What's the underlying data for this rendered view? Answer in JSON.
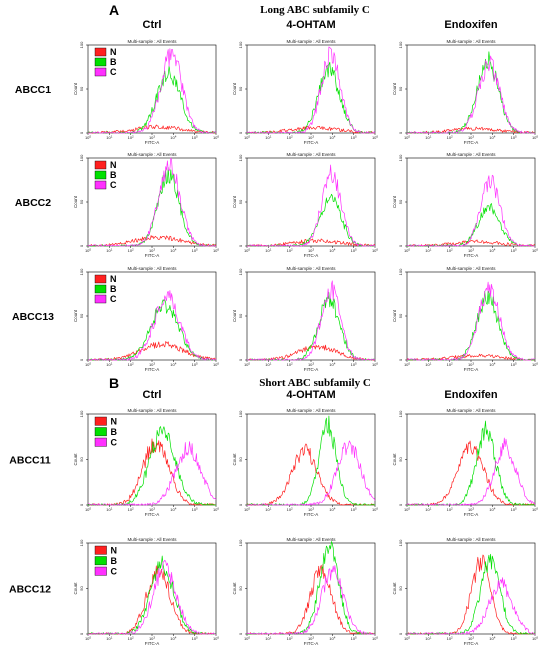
{
  "colors": {
    "N": "#ff2020",
    "B": "#00e000",
    "C": "#ff30ff"
  },
  "chart_data": [
    {
      "panel": "A",
      "title": "Long ABC subfamily C",
      "type": "line",
      "columns": [
        "Ctrl",
        "4-OHTAM",
        "Endoxifen"
      ],
      "rows": [
        "ABCC1",
        "ABCC2",
        "ABCC13"
      ],
      "plot_subtitle": "Multi-sample : All Events",
      "xlabel": "FITC-A",
      "ylabel": "Count",
      "x_scale": "log",
      "xlim": [
        1,
        1000000
      ],
      "ylim": [
        0,
        100
      ],
      "legend": {
        "placement": "top-left",
        "entries": [
          "N",
          "B",
          "C"
        ]
      },
      "histograms": [
        {
          "row": "ABCC1",
          "column": "Ctrl",
          "series": [
            {
              "name": "N",
              "peak_x": 2000,
              "peak_count": 7,
              "width": 1.1
            },
            {
              "name": "B",
              "peak_x": 6000,
              "peak_count": 68,
              "width": 0.55
            },
            {
              "name": "C",
              "peak_x": 8000,
              "peak_count": 90,
              "width": 0.5
            }
          ]
        },
        {
          "row": "ABCC1",
          "column": "4-OHTAM",
          "series": [
            {
              "name": "N",
              "peak_x": 1500,
              "peak_count": 6,
              "width": 1.1
            },
            {
              "name": "B",
              "peak_x": 7000,
              "peak_count": 72,
              "width": 0.5
            },
            {
              "name": "C",
              "peak_x": 8500,
              "peak_count": 88,
              "width": 0.45
            }
          ]
        },
        {
          "row": "ABCC1",
          "column": "Endoxifen",
          "series": [
            {
              "name": "N",
              "peak_x": 1500,
              "peak_count": 5,
              "width": 1.1
            },
            {
              "name": "B",
              "peak_x": 6000,
              "peak_count": 82,
              "width": 0.5
            },
            {
              "name": "C",
              "peak_x": 7000,
              "peak_count": 78,
              "width": 0.5
            }
          ]
        },
        {
          "row": "ABCC2",
          "column": "Ctrl",
          "series": [
            {
              "name": "N",
              "peak_x": 2000,
              "peak_count": 10,
              "width": 1.1
            },
            {
              "name": "B",
              "peak_x": 6000,
              "peak_count": 80,
              "width": 0.5
            },
            {
              "name": "C",
              "peak_x": 6500,
              "peak_count": 92,
              "width": 0.5
            }
          ]
        },
        {
          "row": "ABCC2",
          "column": "4-OHTAM",
          "series": [
            {
              "name": "N",
              "peak_x": 2000,
              "peak_count": 6,
              "width": 1.1
            },
            {
              "name": "B",
              "peak_x": 8000,
              "peak_count": 55,
              "width": 0.5
            },
            {
              "name": "C",
              "peak_x": 9000,
              "peak_count": 82,
              "width": 0.45
            }
          ]
        },
        {
          "row": "ABCC2",
          "column": "Endoxifen",
          "series": [
            {
              "name": "N",
              "peak_x": 2000,
              "peak_count": 5,
              "width": 1.1
            },
            {
              "name": "B",
              "peak_x": 7000,
              "peak_count": 45,
              "width": 0.5
            },
            {
              "name": "C",
              "peak_x": 8000,
              "peak_count": 75,
              "width": 0.45
            }
          ]
        },
        {
          "row": "ABCC13",
          "column": "Ctrl",
          "series": [
            {
              "name": "N",
              "peak_x": 3000,
              "peak_count": 18,
              "width": 1.0
            },
            {
              "name": "B",
              "peak_x": 4000,
              "peak_count": 62,
              "width": 0.65
            },
            {
              "name": "C",
              "peak_x": 5000,
              "peak_count": 72,
              "width": 0.6
            }
          ]
        },
        {
          "row": "ABCC13",
          "column": "4-OHTAM",
          "series": [
            {
              "name": "N",
              "peak_x": 2000,
              "peak_count": 15,
              "width": 0.9
            },
            {
              "name": "B",
              "peak_x": 7000,
              "peak_count": 68,
              "width": 0.5
            },
            {
              "name": "C",
              "peak_x": 8500,
              "peak_count": 80,
              "width": 0.45
            }
          ]
        },
        {
          "row": "ABCC13",
          "column": "Endoxifen",
          "series": [
            {
              "name": "N",
              "peak_x": 2000,
              "peak_count": 5,
              "width": 1.1
            },
            {
              "name": "B",
              "peak_x": 6000,
              "peak_count": 72,
              "width": 0.5
            },
            {
              "name": "C",
              "peak_x": 7000,
              "peak_count": 80,
              "width": 0.5
            }
          ]
        }
      ]
    },
    {
      "panel": "B",
      "title": "Short ABC subfamily C",
      "type": "line",
      "columns": [
        "Ctrl",
        "4-OHTAM",
        "Endoxifen"
      ],
      "rows": [
        "ABCC11",
        "ABCC12"
      ],
      "plot_subtitle": "Multi-sample : All Events",
      "xlabel": "FITC-A",
      "ylabel": "Count",
      "x_scale": "log",
      "xlim": [
        1,
        1000000
      ],
      "ylim": [
        0,
        100
      ],
      "legend": {
        "placement": "top-left",
        "entries": [
          "N",
          "B",
          "C"
        ]
      },
      "histograms": [
        {
          "row": "ABCC11",
          "column": "Ctrl",
          "series": [
            {
              "name": "N",
              "peak_x": 1500,
              "peak_count": 68,
              "width": 0.6
            },
            {
              "name": "B",
              "peak_x": 3000,
              "peak_count": 80,
              "width": 0.6
            },
            {
              "name": "C",
              "peak_x": 50000,
              "peak_count": 62,
              "width": 0.6
            }
          ]
        },
        {
          "row": "ABCC11",
          "column": "4-OHTAM",
          "series": [
            {
              "name": "N",
              "peak_x": 500,
              "peak_count": 60,
              "width": 0.6
            },
            {
              "name": "B",
              "peak_x": 6000,
              "peak_count": 88,
              "width": 0.4
            },
            {
              "name": "C",
              "peak_x": 60000,
              "peak_count": 65,
              "width": 0.55
            }
          ]
        },
        {
          "row": "ABCC11",
          "column": "Endoxifen",
          "series": [
            {
              "name": "N",
              "peak_x": 1000,
              "peak_count": 65,
              "width": 0.6
            },
            {
              "name": "B",
              "peak_x": 5000,
              "peak_count": 82,
              "width": 0.45
            },
            {
              "name": "C",
              "peak_x": 40000,
              "peak_count": 65,
              "width": 0.5
            }
          ]
        },
        {
          "row": "ABCC12",
          "column": "Ctrl",
          "series": [
            {
              "name": "N",
              "peak_x": 2000,
              "peak_count": 70,
              "width": 0.55
            },
            {
              "name": "B",
              "peak_x": 3000,
              "peak_count": 75,
              "width": 0.55
            },
            {
              "name": "C",
              "peak_x": 4000,
              "peak_count": 72,
              "width": 0.55
            }
          ]
        },
        {
          "row": "ABCC12",
          "column": "4-OHTAM",
          "series": [
            {
              "name": "N",
              "peak_x": 3000,
              "peak_count": 70,
              "width": 0.5
            },
            {
              "name": "B",
              "peak_x": 7000,
              "peak_count": 92,
              "width": 0.45
            },
            {
              "name": "C",
              "peak_x": 10000,
              "peak_count": 70,
              "width": 0.5
            }
          ]
        },
        {
          "row": "ABCC12",
          "column": "Endoxifen",
          "series": [
            {
              "name": "N",
              "peak_x": 3000,
              "peak_count": 80,
              "width": 0.45
            },
            {
              "name": "B",
              "peak_x": 8000,
              "peak_count": 82,
              "width": 0.45
            },
            {
              "name": "C",
              "peak_x": 25000,
              "peak_count": 55,
              "width": 0.55
            }
          ]
        }
      ]
    }
  ]
}
